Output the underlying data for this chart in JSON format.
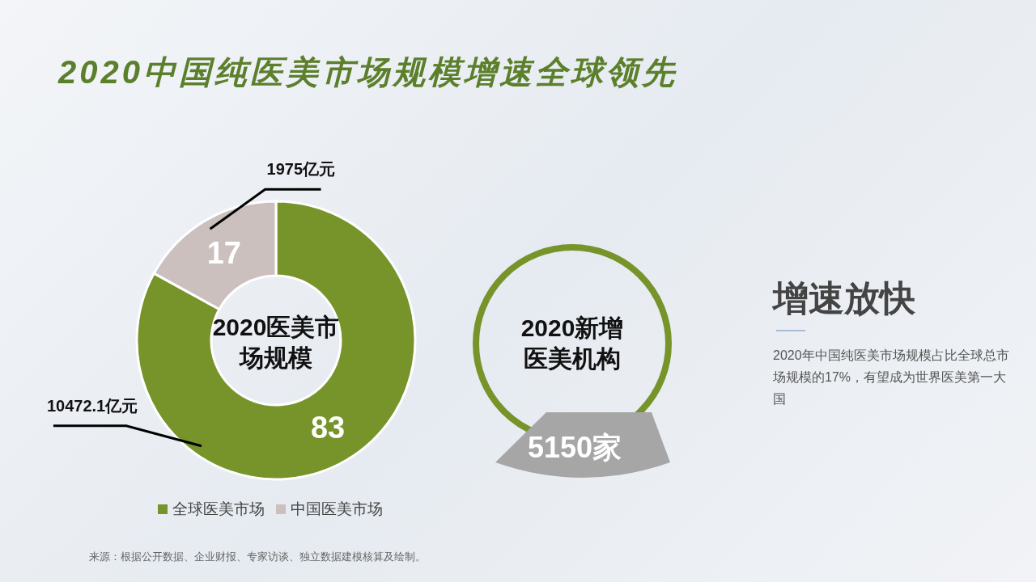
{
  "chart_data": [
    {
      "type": "donut",
      "title": "2020中国纯医美市场规模增速全球领先",
      "subtitle": "2020医美市场规模",
      "categories": [
        "全球医美市场",
        "中国医美市场"
      ],
      "values": [
        83,
        17
      ],
      "colors": [
        "#77942a",
        "#cbc0bd"
      ],
      "data_labels": true,
      "legend": "bottom",
      "annotations": [
        "10472.1亿元",
        "1975亿元",
        "来源：根据公开数据、企业财报、专家访谈、独立数据建模核算及绘制。"
      ]
    },
    {
      "type": "other",
      "title": "2020新增医美机构",
      "annotations": [
        "5150家"
      ]
    },
    {
      "type": "other",
      "title": "增速放快",
      "annotations": [
        "2020年中国纯医美市场规模占比全球总市场规模的17%，有望成为世界医美第一大国"
      ]
    }
  ]
}
